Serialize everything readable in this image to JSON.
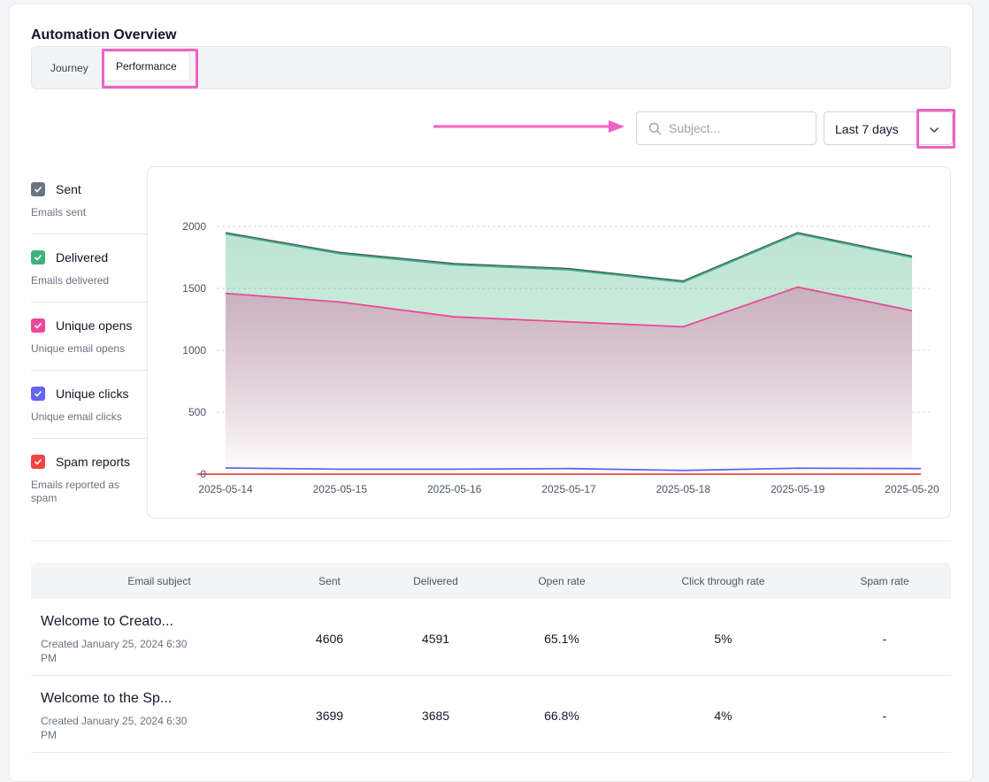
{
  "page": {
    "title": "Automation Overview"
  },
  "tabs": [
    {
      "label": "Journey",
      "active": false
    },
    {
      "label": "Performance",
      "active": true
    }
  ],
  "search": {
    "placeholder": "Subject...",
    "value": ""
  },
  "date_range": {
    "selected": "Last 7 days"
  },
  "legend": [
    {
      "label": "Sent",
      "description": "Emails sent",
      "color": "#6b7280",
      "checked": true
    },
    {
      "label": "Delivered",
      "description": "Emails delivered",
      "color": "#3fb27f",
      "checked": true
    },
    {
      "label": "Unique opens",
      "description": "Unique email opens",
      "color": "#ec4899",
      "checked": true
    },
    {
      "label": "Unique clicks",
      "description": "Unique email clicks",
      "color": "#6366f1",
      "checked": true
    },
    {
      "label": "Spam reports",
      "description": "Emails reported as spam",
      "color": "#ef4444",
      "checked": true
    }
  ],
  "chart_data": {
    "type": "area",
    "x": [
      "2025-05-14",
      "2025-05-15",
      "2025-05-16",
      "2025-05-17",
      "2025-05-18",
      "2025-05-19",
      "2025-05-20"
    ],
    "y_ticks": [
      0,
      500,
      1000,
      1500,
      2000
    ],
    "ylim": [
      0,
      2000
    ],
    "grid": true,
    "series": [
      {
        "name": "Sent",
        "color": "#4b5563",
        "values": [
          1950,
          1790,
          1700,
          1660,
          1560,
          1950,
          1760
        ]
      },
      {
        "name": "Delivered",
        "color": "#3fb27f",
        "values": [
          1940,
          1780,
          1690,
          1650,
          1550,
          1940,
          1750
        ]
      },
      {
        "name": "Unique opens",
        "color": "#ec4899",
        "values": [
          1460,
          1390,
          1270,
          1230,
          1190,
          1510,
          1320
        ]
      },
      {
        "name": "Unique clicks",
        "color": "#6366f1",
        "values": [
          50,
          40,
          40,
          45,
          30,
          48,
          45
        ]
      },
      {
        "name": "Spam reports",
        "color": "#ef4444",
        "values": [
          0,
          0,
          0,
          0,
          0,
          0,
          0
        ]
      }
    ]
  },
  "table": {
    "columns": [
      "Email subject",
      "Sent",
      "Delivered",
      "Open rate",
      "Click through rate",
      "Spam rate"
    ],
    "rows": [
      {
        "subject": "Welcome to Creato...",
        "created": "Created January 25, 2024 6:30 PM",
        "sent": "4606",
        "delivered": "4591",
        "open_rate": "65.1%",
        "ctr": "5%",
        "spam_rate": "-"
      },
      {
        "subject": "Welcome to the Sp...",
        "created": "Created January 25, 2024 6:30 PM",
        "sent": "3699",
        "delivered": "3685",
        "open_rate": "66.8%",
        "ctr": "4%",
        "spam_rate": "-"
      }
    ]
  }
}
